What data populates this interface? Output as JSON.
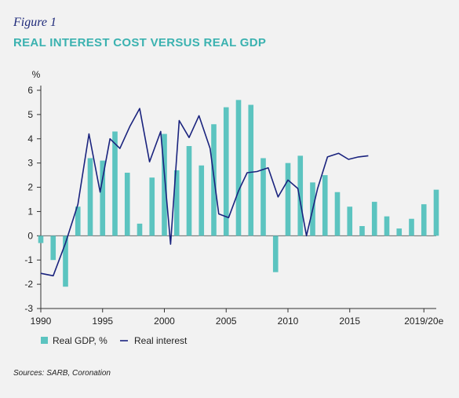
{
  "figure_label": "Figure 1",
  "source": "Sources: SARB, Coronation",
  "colors": {
    "bar": "#5cc4c0",
    "line": "#1a237e",
    "title": "#3bb2b0",
    "figure_label": "#1f2a7a",
    "background": "#f2f2f2"
  },
  "chart_data": {
    "type": "bar",
    "title": "REAL INTEREST COST VERSUS REAL GDP",
    "ylabel": "%",
    "xlabel": "",
    "ylim": [
      -3,
      6
    ],
    "yticks": [
      -3,
      -2,
      -1,
      0,
      1,
      2,
      3,
      4,
      5,
      6
    ],
    "x": [
      1990,
      1991,
      1992,
      1993,
      1994,
      1995,
      1996,
      1997,
      1998,
      1999,
      2000,
      2001,
      2002,
      2003,
      2004,
      2005,
      2006,
      2007,
      2008,
      2009,
      2010,
      2011,
      2012,
      2013,
      2014,
      2015,
      2016,
      2017,
      2018,
      2019,
      2020,
      2021,
      2022
    ],
    "x_tick_labels": [
      {
        "x": 1990,
        "label": "1990"
      },
      {
        "x": 1995,
        "label": "1995"
      },
      {
        "x": 2000,
        "label": "2000"
      },
      {
        "x": 2005,
        "label": "2005"
      },
      {
        "x": 2010,
        "label": "2010"
      },
      {
        "x": 2015,
        "label": "2015"
      },
      {
        "x": 2021,
        "label": "2019/20e"
      }
    ],
    "legend_position": "bottom-left",
    "grid": false,
    "series": [
      {
        "name": "Real GDP, %",
        "type": "bar",
        "values": [
          -0.3,
          -1.0,
          -2.1,
          1.2,
          3.2,
          3.1,
          4.3,
          2.6,
          0.5,
          2.4,
          4.2,
          2.7,
          3.7,
          2.9,
          4.6,
          5.3,
          5.6,
          5.4,
          3.2,
          -1.5,
          3.0,
          3.3,
          2.2,
          2.5,
          1.8,
          1.2,
          0.4,
          1.4,
          0.8,
          0.3,
          0.7,
          1.3,
          1.9
        ]
      },
      {
        "name": "Real interest",
        "type": "line",
        "points": [
          [
            1990.0,
            -1.55
          ],
          [
            1991.0,
            -1.65
          ],
          [
            1992.0,
            -0.3
          ],
          [
            1993.0,
            1.3
          ],
          [
            1993.9,
            4.2
          ],
          [
            1994.8,
            1.8
          ],
          [
            1995.6,
            4.0
          ],
          [
            1996.4,
            3.6
          ],
          [
            1997.2,
            4.5
          ],
          [
            1998.0,
            5.25
          ],
          [
            1998.8,
            3.05
          ],
          [
            1999.7,
            4.3
          ],
          [
            2000.5,
            -0.35
          ],
          [
            2001.2,
            4.75
          ],
          [
            2002.0,
            4.05
          ],
          [
            2002.8,
            4.95
          ],
          [
            2003.7,
            3.6
          ],
          [
            2004.4,
            0.9
          ],
          [
            2005.2,
            0.75
          ],
          [
            2006.0,
            1.85
          ],
          [
            2006.7,
            2.6
          ],
          [
            2007.5,
            2.65
          ],
          [
            2008.4,
            2.8
          ],
          [
            2009.2,
            1.6
          ],
          [
            2010.0,
            2.3
          ],
          [
            2010.8,
            1.95
          ],
          [
            2011.5,
            0.0
          ],
          [
            2012.4,
            1.95
          ],
          [
            2013.2,
            3.25
          ],
          [
            2014.1,
            3.4
          ],
          [
            2014.9,
            3.15
          ],
          [
            2015.7,
            3.25
          ],
          [
            2016.5,
            3.3
          ]
        ]
      }
    ]
  }
}
